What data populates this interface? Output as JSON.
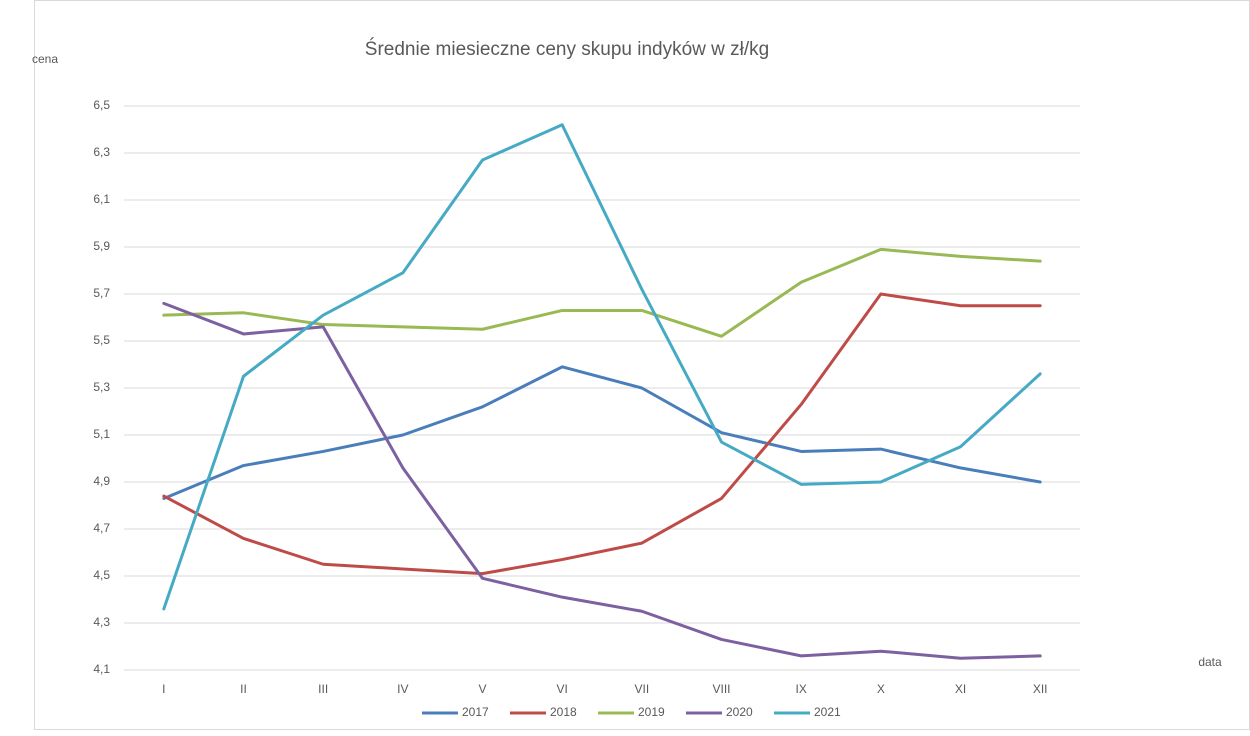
{
  "chart_data": {
    "type": "line",
    "title": "Średnie miesieczne ceny skupu indyków w zł/kg",
    "y_label": "cena",
    "x_label": "data",
    "categories": [
      "I",
      "II",
      "III",
      "IV",
      "V",
      "VI",
      "VII",
      "VIII",
      "IX",
      "X",
      "XI",
      "XII"
    ],
    "series": [
      {
        "name": "2017",
        "color": "#4a7ebb",
        "values": [
          4.83,
          4.97,
          5.03,
          5.1,
          5.22,
          5.39,
          5.3,
          5.11,
          5.03,
          5.04,
          4.96,
          4.9
        ]
      },
      {
        "name": "2018",
        "color": "#be4b48",
        "values": [
          4.84,
          4.66,
          4.55,
          4.53,
          4.51,
          4.57,
          4.64,
          4.83,
          5.23,
          5.7,
          5.65,
          5.65
        ]
      },
      {
        "name": "2019",
        "color": "#98b954",
        "values": [
          5.61,
          5.62,
          5.57,
          5.56,
          5.55,
          5.63,
          5.63,
          5.52,
          5.75,
          5.89,
          5.86,
          5.84
        ]
      },
      {
        "name": "2020",
        "color": "#7d60a0",
        "values": [
          5.66,
          5.53,
          5.56,
          4.96,
          4.49,
          4.41,
          4.35,
          4.23,
          4.16,
          4.18,
          4.15,
          4.16
        ]
      },
      {
        "name": "2021",
        "color": "#46aac5",
        "values": [
          4.36,
          5.35,
          5.61,
          5.79,
          6.27,
          6.42,
          5.72,
          5.07,
          4.89,
          4.9,
          5.05,
          5.36
        ]
      }
    ],
    "ylim": [
      4.1,
      6.5
    ],
    "yticks": [
      {
        "value": 4.1,
        "label": "4,1"
      },
      {
        "value": 4.3,
        "label": "4,3"
      },
      {
        "value": 4.5,
        "label": "4,5"
      },
      {
        "value": 4.7,
        "label": "4,7"
      },
      {
        "value": 4.9,
        "label": "4,9"
      },
      {
        "value": 5.1,
        "label": "5,1"
      },
      {
        "value": 5.3,
        "label": "5,3"
      },
      {
        "value": 5.5,
        "label": "5,5"
      },
      {
        "value": 5.7,
        "label": "5,7"
      },
      {
        "value": 5.9,
        "label": "5,9"
      },
      {
        "value": 6.1,
        "label": "6,1"
      },
      {
        "value": 6.3,
        "label": "6,3"
      },
      {
        "value": 6.5,
        "label": "6,5"
      }
    ],
    "grid": true,
    "legend": "bottom"
  }
}
